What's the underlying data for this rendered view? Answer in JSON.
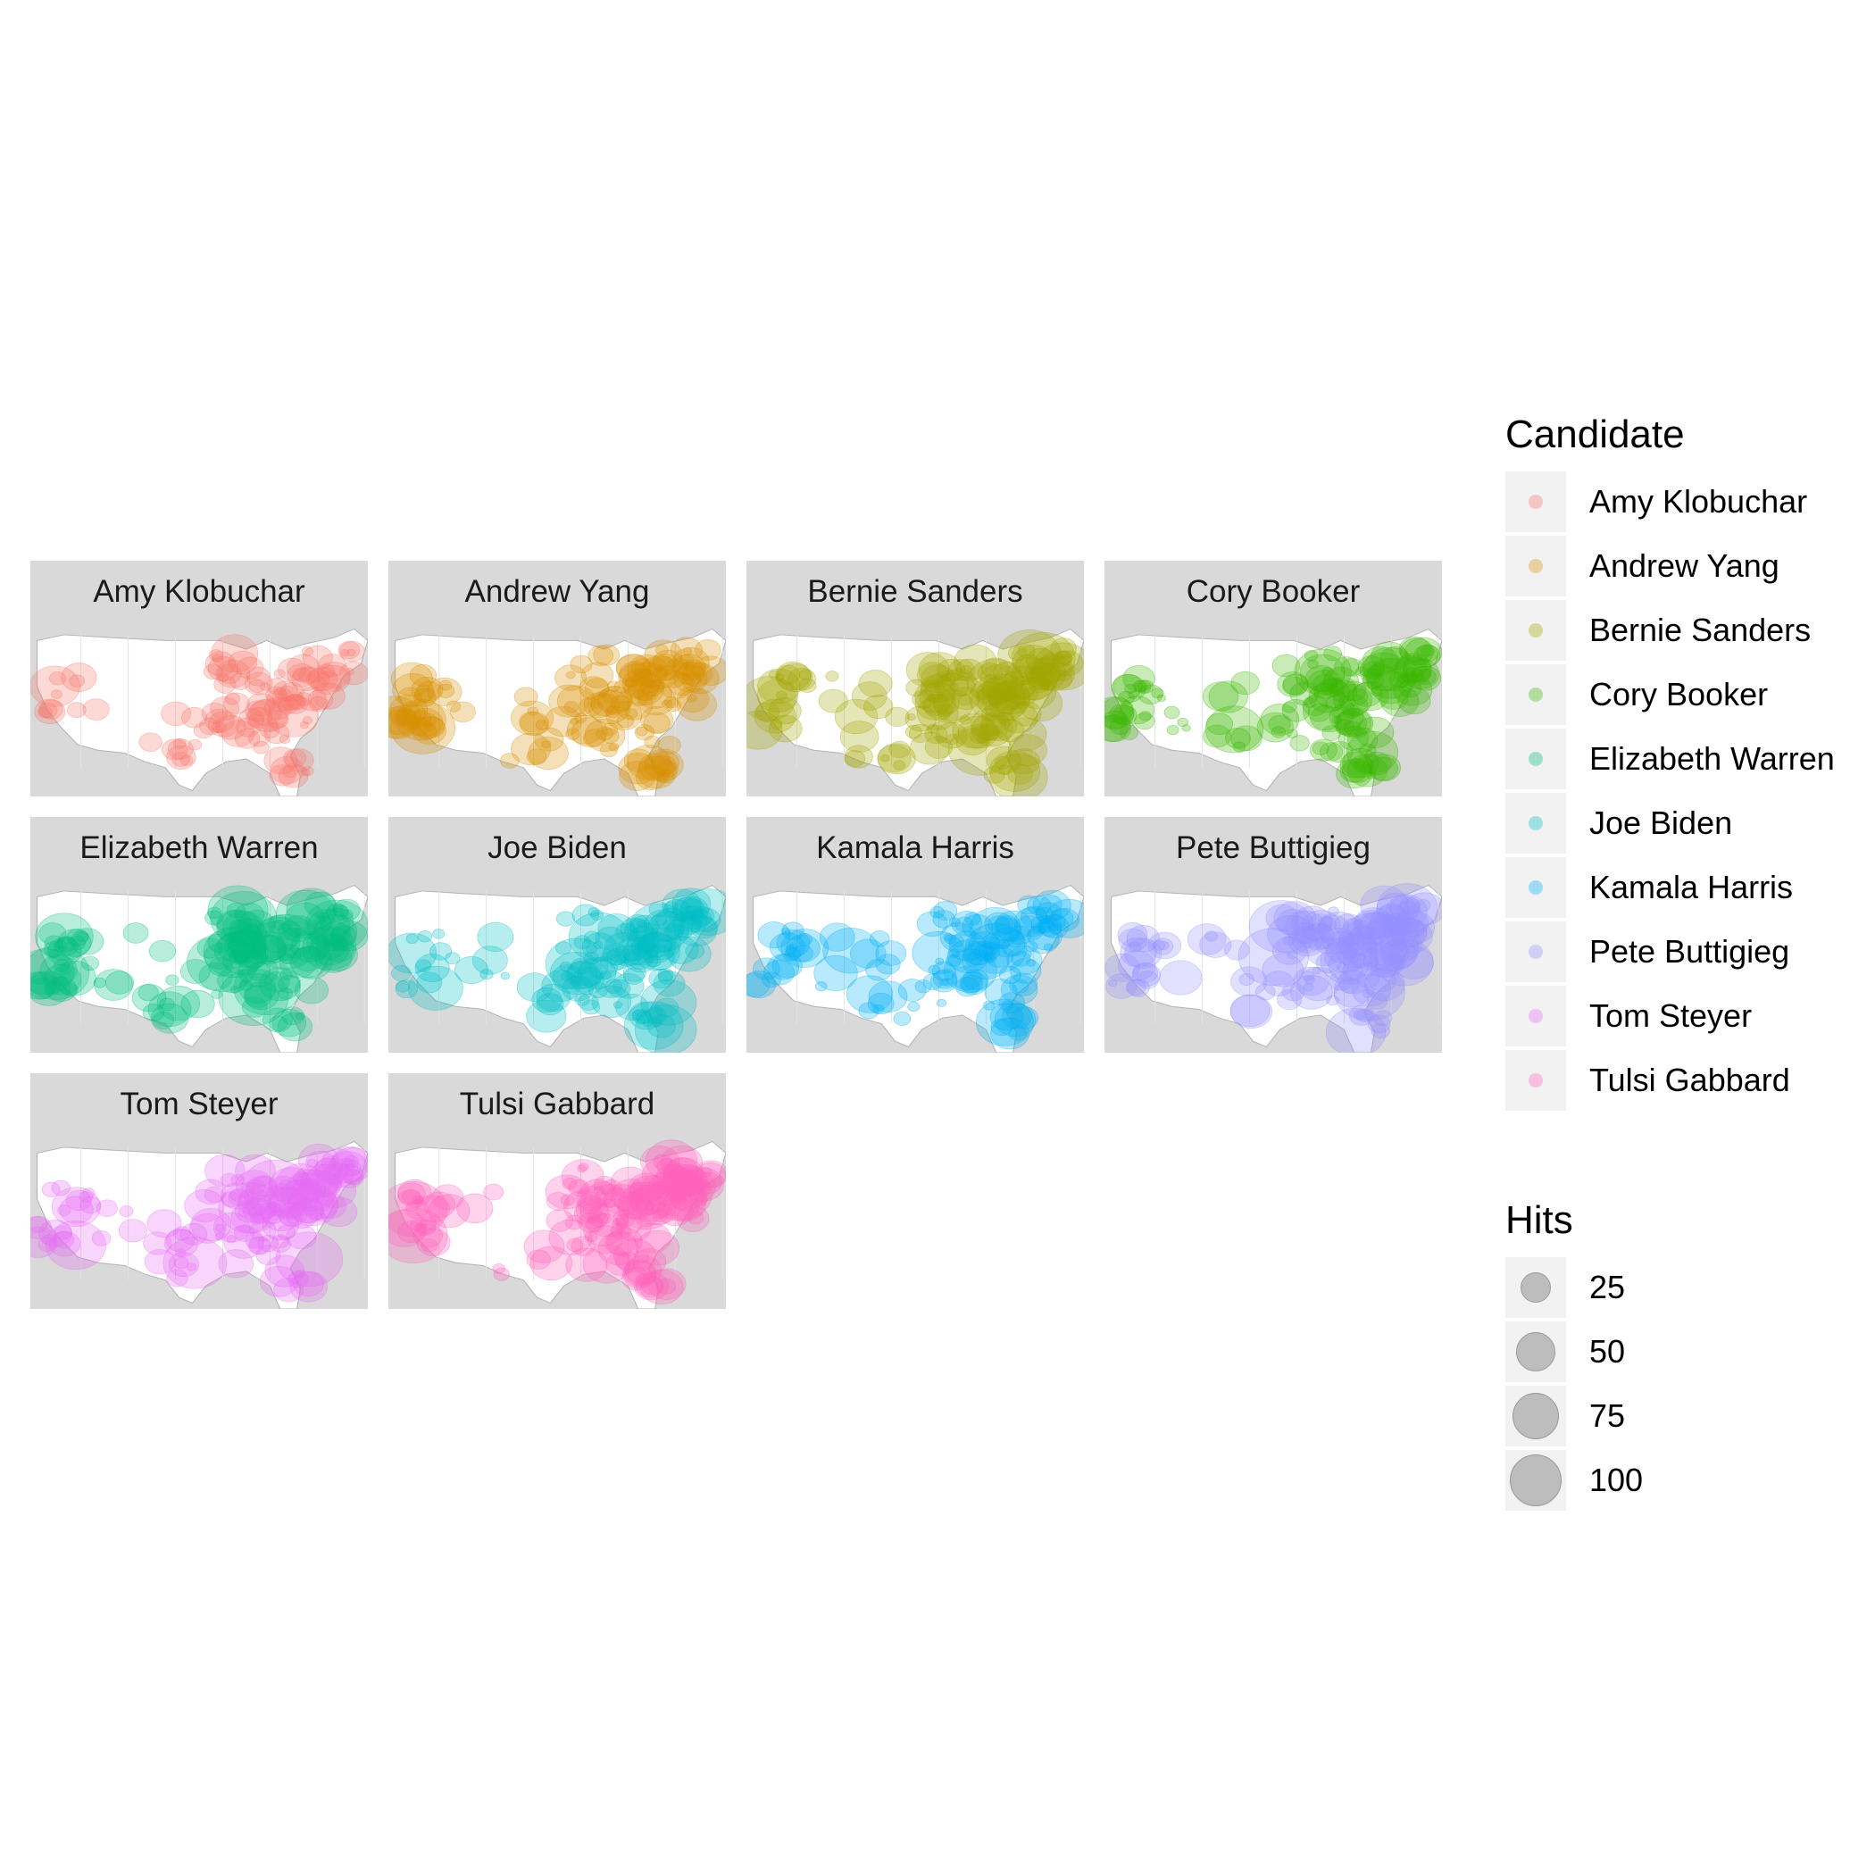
{
  "chart_data": {
    "type": "map",
    "facets": [
      {
        "name": "Amy Klobuchar",
        "color": "#F8766D",
        "density": 0.55
      },
      {
        "name": "Andrew Yang",
        "color": "#D89000",
        "density": 1.0
      },
      {
        "name": "Bernie Sanders",
        "color": "#A3A500",
        "density": 1.0
      },
      {
        "name": "Cory Booker",
        "color": "#39B600",
        "density": 0.85
      },
      {
        "name": "Elizabeth Warren",
        "color": "#00BF7D",
        "density": 1.0
      },
      {
        "name": "Joe Biden",
        "color": "#00BFC4",
        "density": 0.85
      },
      {
        "name": "Kamala Harris",
        "color": "#00B0F6",
        "density": 0.75
      },
      {
        "name": "Pete Buttigieg",
        "color": "#9590FF",
        "density": 1.0
      },
      {
        "name": "Tom Steyer",
        "color": "#E76BF3",
        "density": 0.95
      },
      {
        "name": "Tulsi Gabbard",
        "color": "#FF62BC",
        "density": 1.0
      }
    ],
    "legend_color": {
      "title": "Candidate",
      "entries": [
        "Amy Klobuchar",
        "Andrew Yang",
        "Bernie Sanders",
        "Cory Booker",
        "Elizabeth Warren",
        "Joe Biden",
        "Kamala Harris",
        "Pete Buttigieg",
        "Tom Steyer",
        "Tulsi Gabbard"
      ]
    },
    "legend_size": {
      "title": "Hits",
      "entries": [
        "25",
        "50",
        "75",
        "100"
      ]
    },
    "base_map_colors": {
      "land": "#ffffff",
      "outside": "#d9d9d9",
      "border": "#b3b3b3"
    }
  }
}
